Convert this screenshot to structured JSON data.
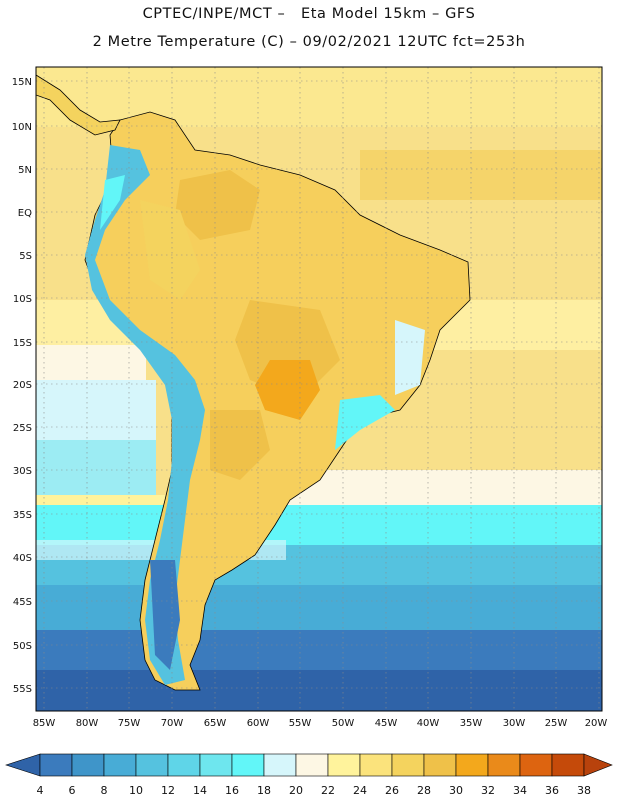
{
  "header": {
    "line1": "CPTEC/INPE/MCT –   Eta Model 15km – GFS",
    "line2": "2 Metre Temperature (C) – 09/02/2021 12UTC fct=253h"
  },
  "map": {
    "lat_labels": [
      "15N",
      "10N",
      "5N",
      "EQ",
      "5S",
      "10S",
      "15S",
      "20S",
      "25S",
      "30S",
      "35S",
      "40S",
      "45S",
      "50S",
      "55S"
    ],
    "lon_labels": [
      "85W",
      "80W",
      "75W",
      "70W",
      "65W",
      "60W",
      "55W",
      "50W",
      "45W",
      "40W",
      "35W",
      "30W",
      "25W",
      "20W"
    ],
    "lat_values": [
      15,
      10,
      5,
      0,
      -5,
      -10,
      -15,
      -20,
      -25,
      -30,
      -35,
      -40,
      -45,
      -50,
      -55
    ],
    "lon_values": [
      -85,
      -80,
      -75,
      -70,
      -65,
      -60,
      -55,
      -50,
      -45,
      -40,
      -35,
      -30,
      -25,
      -20
    ]
  },
  "colorbar": {
    "labels": [
      "4",
      "6",
      "8",
      "10",
      "12",
      "14",
      "16",
      "18",
      "20",
      "22",
      "24",
      "26",
      "28",
      "30",
      "32",
      "34",
      "36",
      "38"
    ],
    "colors": [
      "#2f63a8",
      "#3b7bbd",
      "#3f95c9",
      "#48acd6",
      "#55c2df",
      "#5fd5e8",
      "#6ee6ee",
      "#62f6f8",
      "#d6f6fb",
      "#fdf7e4",
      "#fff39c",
      "#fbe37c",
      "#f4d35e",
      "#efc149",
      "#f3a81c",
      "#ea8a1a",
      "#dd6410",
      "#c54a0a",
      "#b8420c"
    ]
  }
}
